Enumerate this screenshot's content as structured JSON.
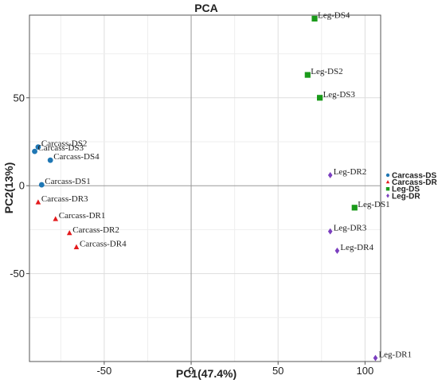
{
  "chart_data": {
    "type": "scatter",
    "title": "PCA",
    "xlabel": "PC1(47.4%)",
    "ylabel": "PC2(13%)",
    "xlim": [
      -93,
      109
    ],
    "ylim": [
      -100,
      97
    ],
    "xticks": [
      -50,
      0,
      50,
      100
    ],
    "yticks": [
      -50,
      0,
      50
    ],
    "grid": true,
    "legend_position": "right",
    "series": [
      {
        "name": "Carcass-DS",
        "color": "#1f77b4",
        "marker": "circle",
        "points": [
          {
            "label": "Carcass-DS1",
            "x": -86,
            "y": 0.5
          },
          {
            "label": "Carcass-DS2",
            "x": -88,
            "y": 22
          },
          {
            "label": "Carcass-DS3",
            "x": -90,
            "y": 19.5
          },
          {
            "label": "Carcass-DS4",
            "x": -81,
            "y": 14.5
          }
        ]
      },
      {
        "name": "Carcass-DR",
        "color": "#e31a1c",
        "marker": "triangle",
        "points": [
          {
            "label": "Carcass-DR1",
            "x": -78,
            "y": -19
          },
          {
            "label": "Carcass-DR2",
            "x": -70,
            "y": -27
          },
          {
            "label": "Carcass-DR3",
            "x": -88,
            "y": -9.5
          },
          {
            "label": "Carcass-DR4",
            "x": -66,
            "y": -35
          }
        ]
      },
      {
        "name": "Leg-DS",
        "color": "#1a9a1a",
        "marker": "square",
        "points": [
          {
            "label": "Leg-DS1",
            "x": 94,
            "y": -12.5
          },
          {
            "label": "Leg-DS2",
            "x": 67,
            "y": 63
          },
          {
            "label": "Leg-DS3",
            "x": 74,
            "y": 50
          },
          {
            "label": "Leg-DS4",
            "x": 71,
            "y": 95
          }
        ]
      },
      {
        "name": "Leg-DR",
        "color": "#7b3fbf",
        "marker": "diamond",
        "points": [
          {
            "label": "Leg-DR1",
            "x": 106,
            "y": -98
          },
          {
            "label": "Leg-DR2",
            "x": 80,
            "y": 6
          },
          {
            "label": "Leg-DR3",
            "x": 80,
            "y": -26
          },
          {
            "label": "Leg-DR4",
            "x": 84,
            "y": -37
          }
        ]
      }
    ]
  }
}
